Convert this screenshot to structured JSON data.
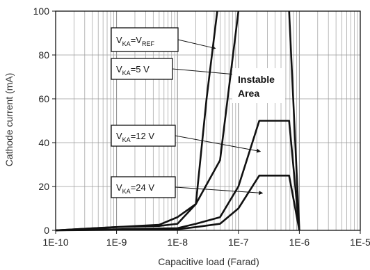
{
  "chart_data": {
    "type": "line",
    "xlabel": "Capacitive load (Farad)",
    "ylabel": "Cathode current (mA)",
    "x_scale": "log",
    "xlim": [
      1e-10,
      1e-05
    ],
    "ylim": [
      0,
      100
    ],
    "x_ticks": [
      1e-10,
      1e-09,
      1e-08,
      1e-07,
      1e-06,
      1e-05
    ],
    "x_tick_labels": [
      "1E-10",
      "1E-9",
      "1E-8",
      "1E-7",
      "1E-6",
      "1E-5"
    ],
    "y_ticks": [
      0,
      20,
      40,
      60,
      80,
      100
    ],
    "y_tick_labels": [
      "0",
      "20",
      "40",
      "60",
      "80",
      "100"
    ],
    "grid": true,
    "series": [
      {
        "name": "V_KA=V_REF",
        "x": [
          1e-10,
          1e-09,
          5e-09,
          1e-08,
          2e-08,
          3e-08,
          4.5e-08
        ],
        "y": [
          0,
          1.5,
          2.5,
          6,
          12,
          60,
          100
        ]
      },
      {
        "name": "V_KA=5 V",
        "x": [
          1e-10,
          1e-09,
          5e-09,
          1e-08,
          2e-08,
          5e-08,
          1e-07
        ],
        "y": [
          0,
          1.5,
          2,
          3,
          12,
          32,
          100
        ]
      },
      {
        "name": "V_KA=12 V",
        "x": [
          1e-10,
          1e-08,
          2e-08,
          5e-08,
          1e-07,
          2.2e-07,
          6.8e-07,
          1e-06
        ],
        "y": [
          0,
          1,
          3,
          6,
          20,
          50,
          50,
          0
        ]
      },
      {
        "name": "V_KA=24 V",
        "x": [
          1e-10,
          1e-08,
          2e-08,
          5e-08,
          1e-07,
          2.2e-07,
          6.8e-07,
          1e-06
        ],
        "y": [
          0,
          0.5,
          1.5,
          3,
          10,
          25,
          25,
          0
        ]
      },
      {
        "name": "instable-area-boundary",
        "x": [
          6.8e-07,
          1e-06
        ],
        "y": [
          100,
          0
        ]
      }
    ],
    "annotations": [
      {
        "main": "V",
        "sub": "KA",
        "mid": "=V",
        "sub2": "REF",
        "tail": "",
        "target_x": 4.2e-08,
        "target_y": 83
      },
      {
        "main": "V",
        "sub": "KA",
        "mid": "=5 V",
        "sub2": "",
        "tail": "",
        "target_x": 2.5e-07,
        "target_y": 70
      },
      {
        "main": "V",
        "sub": "KA",
        "mid": "=12 V",
        "sub2": "",
        "tail": "",
        "target_x": 2.3e-07,
        "target_y": 36
      },
      {
        "main": "V",
        "sub": "KA",
        "mid": "=24 V",
        "sub2": "",
        "tail": "",
        "target_x": 2.5e-07,
        "target_y": 17
      }
    ],
    "region_label": [
      "Instable",
      "Area"
    ]
  }
}
